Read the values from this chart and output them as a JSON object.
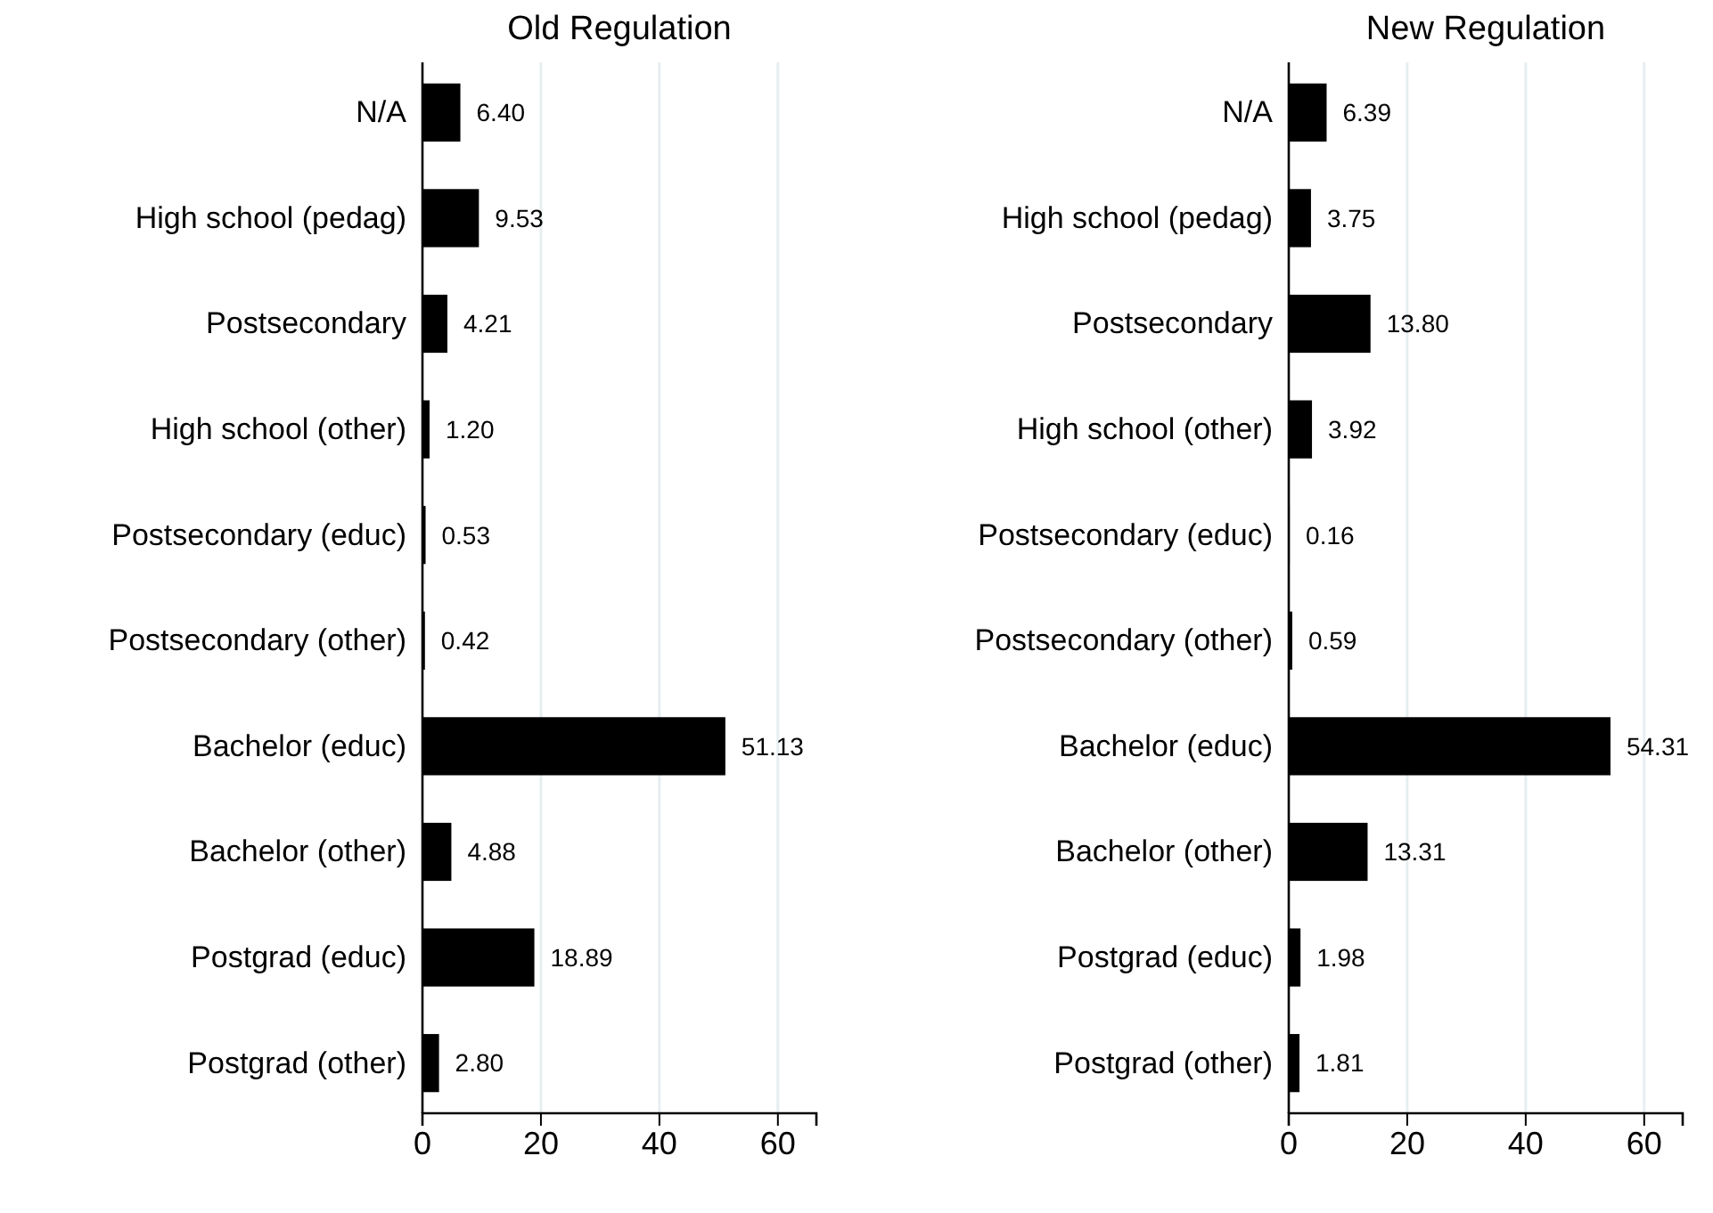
{
  "chart_data": [
    {
      "type": "bar",
      "orientation": "horizontal",
      "title": "Old Regulation",
      "categories": [
        "N/A",
        "High school (pedag)",
        "Postsecondary",
        "High school (other)",
        "Postsecondary (educ)",
        "Postsecondary (other)",
        "Bachelor (educ)",
        "Bachelor (other)",
        "Postgrad (educ)",
        "Postgrad (other)"
      ],
      "values": [
        6.4,
        9.53,
        4.21,
        1.2,
        0.53,
        0.42,
        51.13,
        4.88,
        18.89,
        2.8
      ],
      "value_labels": [
        "6.40",
        "9.53",
        "4.21",
        "1.20",
        "0.53",
        "0.42",
        "51.13",
        "4.88",
        "18.89",
        "2.80"
      ],
      "color": "#000000",
      "xlim": [
        0,
        66.5
      ],
      "xticks": [
        0,
        20,
        40,
        60
      ],
      "grid": "x"
    },
    {
      "type": "bar",
      "orientation": "horizontal",
      "title": "New Regulation",
      "categories": [
        "N/A",
        "High school (pedag)",
        "Postsecondary",
        "High school (other)",
        "Postsecondary (educ)",
        "Postsecondary (other)",
        "Bachelor (educ)",
        "Bachelor (other)",
        "Postgrad (educ)",
        "Postgrad (other)"
      ],
      "values": [
        6.39,
        3.75,
        13.8,
        3.92,
        0.16,
        0.59,
        54.31,
        13.31,
        1.98,
        1.81
      ],
      "value_labels": [
        "6.39",
        "3.75",
        "13.80",
        "3.92",
        "0.16",
        "0.59",
        "54.31",
        "13.31",
        "1.98",
        "1.81"
      ],
      "color": "#000000",
      "xlim": [
        0,
        66.5
      ],
      "xticks": [
        0,
        20,
        40,
        60
      ],
      "grid": "x"
    }
  ]
}
